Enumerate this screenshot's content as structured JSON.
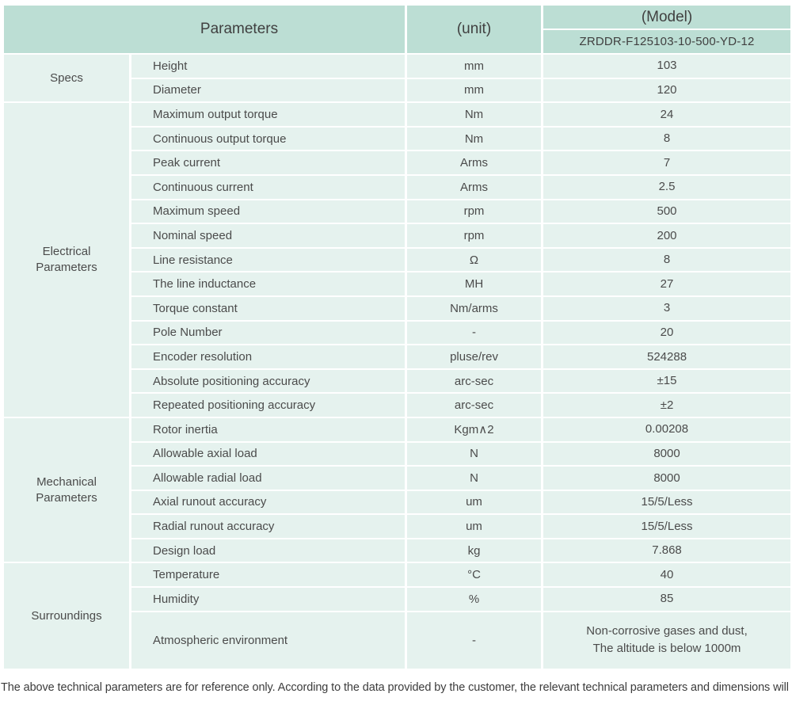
{
  "colors": {
    "header_bg": "#bcded4",
    "row_bg": "#e5f2ee",
    "separator": "#ffffff",
    "text": "#4b4b4b",
    "header_text": "#404040",
    "note_text": "#3c3c3c"
  },
  "table": {
    "header": {
      "parameters_label": "Parameters",
      "unit_label": "(unit)",
      "model_label": "(Model)",
      "model_value": "ZRDDR-F125103-10-500-YD-12"
    },
    "sections": [
      {
        "group": "Specs",
        "rows": [
          {
            "name": "Height",
            "unit": "mm",
            "value": "103"
          },
          {
            "name": "Diameter",
            "unit": "mm",
            "value": "120"
          }
        ]
      },
      {
        "group": "Electrical Parameters",
        "rows": [
          {
            "name": "Maximum output torque",
            "unit": "Nm",
            "value": "24"
          },
          {
            "name": "Continuous output torque",
            "unit": "Nm",
            "value": "8"
          },
          {
            "name": "Peak current",
            "unit": "Arms",
            "value": "7"
          },
          {
            "name": "Continuous current",
            "unit": "Arms",
            "value": "2.5"
          },
          {
            "name": "Maximum speed",
            "unit": "rpm",
            "value": "500"
          },
          {
            "name": "Nominal speed",
            "unit": "rpm",
            "value": "200"
          },
          {
            "name": "Line resistance",
            "unit": "Ω",
            "value": "8"
          },
          {
            "name": "The line inductance",
            "unit": "MH",
            "value": "27"
          },
          {
            "name": "Torque constant",
            "unit": "Nm/arms",
            "value": "3"
          },
          {
            "name": "Pole Number",
            "unit": "-",
            "value": "20"
          },
          {
            "name": "Encoder resolution",
            "unit": "pluse/rev",
            "value": "524288"
          },
          {
            "name": "Absolute positioning accuracy",
            "unit": "arc-sec",
            "value": "±15"
          },
          {
            "name": "Repeated positioning accuracy",
            "unit": "arc-sec",
            "value": "±2"
          }
        ]
      },
      {
        "group": "Mechanical Parameters",
        "rows": [
          {
            "name": "Rotor inertia",
            "unit": "Kgm∧2",
            "value": "0.00208"
          },
          {
            "name": "Allowable axial load",
            "unit": "N",
            "value": "8000"
          },
          {
            "name": "Allowable radial load",
            "unit": "N",
            "value": "8000"
          },
          {
            "name": "Axial runout accuracy",
            "unit": "um",
            "value": "15/5/Less"
          },
          {
            "name": "Radial runout accuracy",
            "unit": "um",
            "value": "15/5/Less"
          },
          {
            "name": "Design load",
            "unit": "kg",
            "value": "7.868"
          }
        ]
      },
      {
        "group": "Surroundings",
        "rows": [
          {
            "name": "Temperature",
            "unit": "°C",
            "value": "40"
          },
          {
            "name": "Humidity",
            "unit": "%",
            "value": "85"
          },
          {
            "name": "Atmospheric environment",
            "unit": "-",
            "value": "Non-corrosive gases and dust,\nThe altitude is below 1000m",
            "tall": true
          }
        ]
      }
    ]
  },
  "footer_note": "The above technical parameters are for reference only. According to the data provided by the customer, the relevant technical parameters and dimensions will be issued."
}
